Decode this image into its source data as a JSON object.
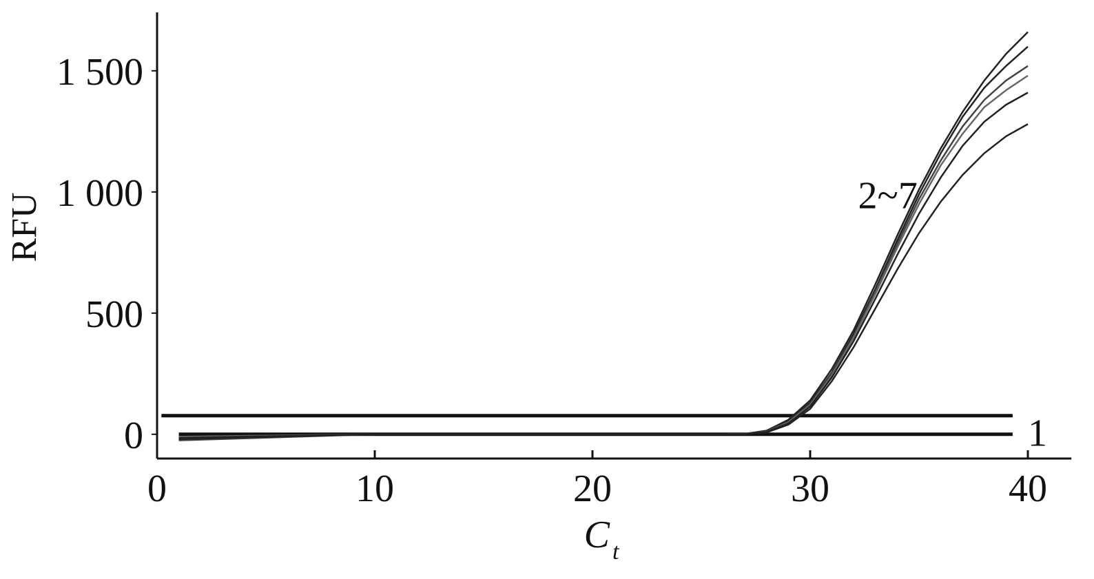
{
  "chart_data": {
    "type": "line",
    "y_label": "RFU",
    "x_label": {
      "main": "C",
      "sub": "t"
    },
    "xlim": [
      0,
      42
    ],
    "ylim": [
      -100,
      1741
    ],
    "xticks": [
      0,
      10,
      20,
      30,
      40
    ],
    "yticks": [
      0,
      500,
      {
        "value": 1000,
        "label": "1 000"
      },
      {
        "value": 1500,
        "label": "1 500"
      }
    ],
    "grid": false,
    "threshold": {
      "value": 77,
      "x": [
        0.2,
        39.3
      ],
      "color": "#111"
    },
    "series": [
      {
        "color": "#111",
        "x": [
          1,
          39.3
        ],
        "values": [
          0,
          0
        ]
      },
      {
        "color": "#222",
        "x": [
          1,
          10,
          20,
          26,
          27,
          28,
          29,
          30,
          31,
          32,
          33,
          34,
          35,
          36,
          37,
          38,
          39,
          40
        ],
        "values": [
          -20,
          0,
          0,
          0,
          2,
          15,
          60,
          140,
          270,
          430,
          620,
          820,
          1010,
          1180,
          1330,
          1460,
          1570,
          1660
        ]
      },
      {
        "color": "#222",
        "x": [
          1,
          10,
          20,
          26,
          27,
          28,
          29,
          30,
          31,
          32,
          33,
          34,
          35,
          36,
          37,
          38,
          39,
          40
        ],
        "values": [
          -15,
          0,
          0,
          0,
          2,
          12,
          55,
          130,
          255,
          415,
          600,
          800,
          990,
          1160,
          1310,
          1430,
          1520,
          1600
        ]
      },
      {
        "color": "#444",
        "x": [
          1,
          10,
          20,
          26,
          27,
          28,
          29,
          30,
          31,
          32,
          33,
          34,
          35,
          36,
          37,
          38,
          39,
          40
        ],
        "values": [
          -25,
          0,
          0,
          0,
          2,
          12,
          50,
          125,
          250,
          405,
          590,
          785,
          970,
          1130,
          1270,
          1380,
          1460,
          1520
        ]
      },
      {
        "color": "#666",
        "x": [
          1,
          10,
          20,
          26,
          27,
          28,
          29,
          30,
          31,
          32,
          33,
          34,
          35,
          36,
          37,
          38,
          39,
          40
        ],
        "values": [
          -10,
          0,
          0,
          0,
          1,
          10,
          50,
          120,
          245,
          400,
          580,
          770,
          950,
          1110,
          1240,
          1350,
          1420,
          1480
        ]
      },
      {
        "color": "#222",
        "x": [
          1,
          10,
          20,
          26,
          27,
          28,
          29,
          30,
          31,
          32,
          33,
          34,
          35,
          36,
          37,
          38,
          39,
          40
        ],
        "values": [
          -20,
          0,
          0,
          0,
          1,
          10,
          45,
          115,
          235,
          385,
          560,
          740,
          910,
          1060,
          1190,
          1290,
          1360,
          1410
        ]
      },
      {
        "color": "#222",
        "x": [
          1,
          10,
          20,
          26,
          27,
          28,
          29,
          30,
          31,
          32,
          33,
          34,
          35,
          36,
          37,
          38,
          39,
          40
        ],
        "values": [
          -15,
          0,
          0,
          0,
          1,
          8,
          40,
          105,
          220,
          360,
          520,
          680,
          830,
          960,
          1070,
          1160,
          1230,
          1280
        ]
      }
    ],
    "annotations": [
      {
        "text": "2~7",
        "x": 32.2,
        "y": 990
      },
      {
        "text": "1",
        "x": 40,
        "y": 10
      }
    ]
  }
}
